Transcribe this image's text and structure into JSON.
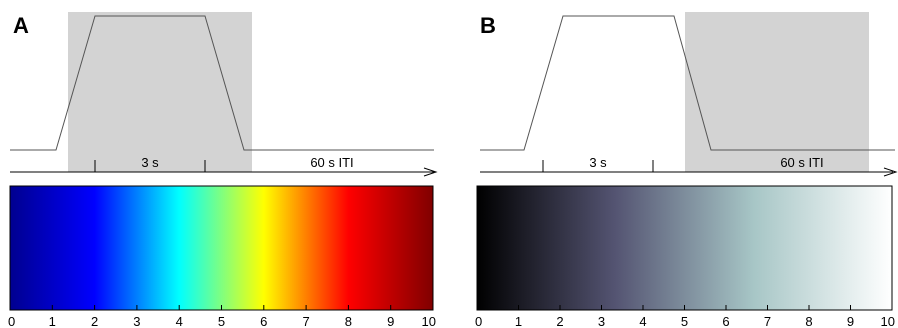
{
  "panels": [
    {
      "letter": "A",
      "duration_label": "3 s",
      "iti_label": "60 s ITI",
      "colormap": "jet",
      "colormap_stops": [
        "#00008f",
        "#0000ff",
        "#00ffff",
        "#ffff00",
        "#ff0000",
        "#800000"
      ],
      "scale_labels": [
        "0",
        "1",
        "2",
        "3",
        "4",
        "5",
        "6",
        "7",
        "8",
        "9",
        "10"
      ]
    },
    {
      "letter": "B",
      "duration_label": "3 s",
      "iti_label": "60 s ITI",
      "colormap": "bone",
      "colormap_stops": [
        "#000000",
        "#545472",
        "#a7c6c6",
        "#ffffff"
      ],
      "scale_labels": [
        "0",
        "1",
        "2",
        "3",
        "4",
        "5",
        "6",
        "7",
        "8",
        "9",
        "10"
      ]
    }
  ],
  "colors": {
    "shade": "#d3d3d3",
    "line": "#555555"
  }
}
